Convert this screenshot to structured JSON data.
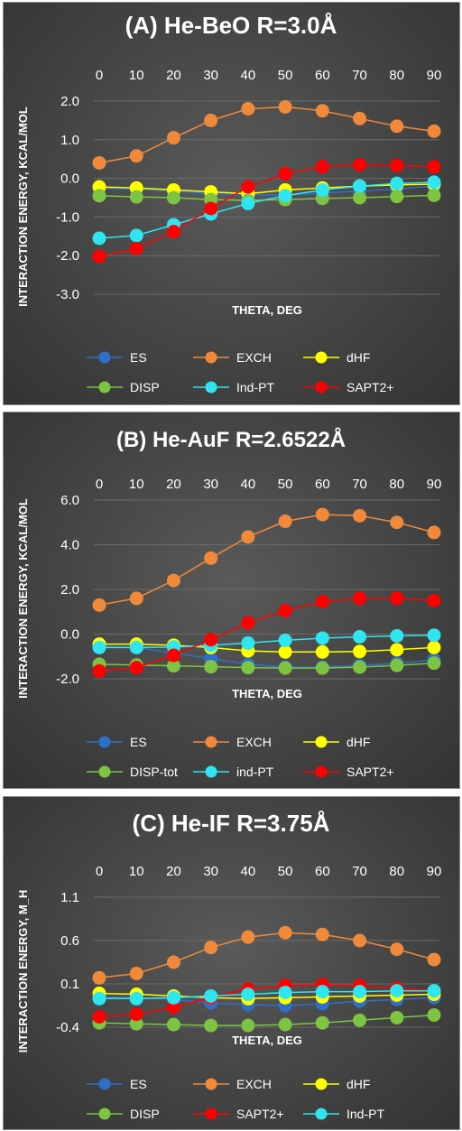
{
  "chart_data": [
    {
      "type": "line",
      "title": "(A) He-BeO R=3.0Å",
      "xlabel": "THETA, DEG",
      "ylabel": "INTERACTION ENERGY, KCAL/MOL",
      "x": [
        0,
        10,
        20,
        30,
        40,
        50,
        60,
        70,
        80,
        90
      ],
      "xticks": [
        "0",
        "10",
        "20",
        "30",
        "40",
        "50",
        "60",
        "70",
        "80",
        "90"
      ],
      "ylim": [
        -3.0,
        2.0
      ],
      "yticks": [
        "2.0",
        "1.0",
        "0.0",
        "-1.0",
        "-2.0",
        "-3.0"
      ],
      "legend_position": "bottom",
      "series": [
        {
          "name": "ES",
          "color": "#2f6fc9",
          "values": [
            -0.25,
            -0.28,
            -0.33,
            -0.4,
            -0.43,
            -0.43,
            -0.38,
            -0.33,
            -0.27,
            -0.2
          ]
        },
        {
          "name": "EXCH",
          "color": "#f08a3a",
          "values": [
            0.4,
            0.58,
            1.05,
            1.5,
            1.8,
            1.85,
            1.75,
            1.55,
            1.35,
            1.22
          ]
        },
        {
          "name": "dHF",
          "color": "#ffff00",
          "values": [
            -0.22,
            -0.25,
            -0.3,
            -0.35,
            -0.4,
            -0.3,
            -0.25,
            -0.2,
            -0.17,
            -0.15
          ]
        },
        {
          "name": "DISP",
          "color": "#7dc442",
          "values": [
            -0.45,
            -0.48,
            -0.5,
            -0.55,
            -0.57,
            -0.55,
            -0.52,
            -0.5,
            -0.47,
            -0.44
          ]
        },
        {
          "name": "Ind-PT",
          "color": "#2fe6f0",
          "values": [
            -1.55,
            -1.48,
            -1.2,
            -0.92,
            -0.65,
            -0.45,
            -0.3,
            -0.2,
            -0.13,
            -0.1
          ]
        },
        {
          "name": "SAPT2+",
          "color": "#ff0000",
          "values": [
            -2.02,
            -1.82,
            -1.38,
            -0.78,
            -0.22,
            0.12,
            0.3,
            0.35,
            0.33,
            0.3
          ]
        }
      ]
    },
    {
      "type": "line",
      "title": "(B) He-AuF R=2.6522Å",
      "xlabel": "THETA, DEG",
      "ylabel": "INTERACTION ENERGY, KCAL/MOL",
      "x": [
        0,
        10,
        20,
        30,
        40,
        50,
        60,
        70,
        80,
        90
      ],
      "xticks": [
        "0",
        "10",
        "20",
        "30",
        "40",
        "50",
        "60",
        "70",
        "80",
        "90"
      ],
      "ylim": [
        -2.0,
        6.0
      ],
      "yticks": [
        "6.0",
        "4.0",
        "2.0",
        "0.0",
        "-2.0"
      ],
      "legend_position": "bottom",
      "series": [
        {
          "name": "ES",
          "color": "#2f6fc9",
          "values": [
            -0.55,
            -0.6,
            -0.85,
            -1.1,
            -1.35,
            -1.48,
            -1.48,
            -1.4,
            -1.3,
            -1.15
          ]
        },
        {
          "name": "EXCH",
          "color": "#f08a3a",
          "values": [
            1.3,
            1.6,
            2.4,
            3.4,
            4.35,
            5.05,
            5.35,
            5.3,
            5.0,
            4.55
          ]
        },
        {
          "name": "dHF",
          "color": "#ffff00",
          "values": [
            -0.45,
            -0.45,
            -0.5,
            -0.6,
            -0.75,
            -0.8,
            -0.8,
            -0.78,
            -0.7,
            -0.6
          ]
        },
        {
          "name": "DISP-tot",
          "color": "#7dc442",
          "values": [
            -1.35,
            -1.38,
            -1.42,
            -1.46,
            -1.5,
            -1.52,
            -1.52,
            -1.48,
            -1.4,
            -1.3
          ]
        },
        {
          "name": "ind-PT",
          "color": "#2fe6f0",
          "values": [
            -0.6,
            -0.6,
            -0.58,
            -0.5,
            -0.4,
            -0.28,
            -0.18,
            -0.12,
            -0.08,
            -0.05
          ]
        },
        {
          "name": "SAPT2+",
          "color": "#ff0000",
          "values": [
            -1.65,
            -1.5,
            -0.95,
            -0.25,
            0.5,
            1.05,
            1.45,
            1.6,
            1.6,
            1.5
          ]
        }
      ]
    },
    {
      "type": "line",
      "title": "(C) He-IF R=3.75Å",
      "xlabel": "THETA, DEG",
      "ylabel": "INTERACTION ENERGY, M_H",
      "x": [
        0,
        10,
        20,
        30,
        40,
        50,
        60,
        70,
        80,
        90
      ],
      "xticks": [
        "0",
        "10",
        "20",
        "30",
        "40",
        "50",
        "60",
        "70",
        "80",
        "90"
      ],
      "ylim": [
        -0.4,
        1.1
      ],
      "yticks": [
        "1.1",
        "0.6",
        "0.1",
        "-0.4"
      ],
      "legend_position": "bottom",
      "series": [
        {
          "name": "ES",
          "color": "#2f6fc9",
          "values": [
            -0.05,
            -0.06,
            -0.08,
            -0.12,
            -0.14,
            -0.15,
            -0.13,
            -0.1,
            -0.08,
            -0.06
          ]
        },
        {
          "name": "EXCH",
          "color": "#f08a3a",
          "values": [
            0.17,
            0.22,
            0.35,
            0.52,
            0.64,
            0.69,
            0.67,
            0.6,
            0.5,
            0.38
          ]
        },
        {
          "name": "dHF",
          "color": "#ffff00",
          "values": [
            -0.01,
            -0.02,
            -0.04,
            -0.06,
            -0.07,
            -0.06,
            -0.05,
            -0.04,
            -0.03,
            -0.02
          ]
        },
        {
          "name": "DISP",
          "color": "#7dc442",
          "values": [
            -0.35,
            -0.36,
            -0.37,
            -0.38,
            -0.38,
            -0.37,
            -0.35,
            -0.32,
            -0.29,
            -0.26
          ]
        },
        {
          "name": "SAPT2+",
          "color": "#ff0000",
          "values": [
            -0.28,
            -0.25,
            -0.17,
            -0.06,
            0.04,
            0.08,
            0.09,
            0.08,
            0.05,
            0.02
          ]
        },
        {
          "name": "Ind-PT",
          "color": "#2fe6f0",
          "values": [
            -0.07,
            -0.07,
            -0.06,
            -0.04,
            -0.02,
            0.0,
            0.01,
            0.01,
            0.02,
            0.02
          ]
        }
      ]
    }
  ]
}
